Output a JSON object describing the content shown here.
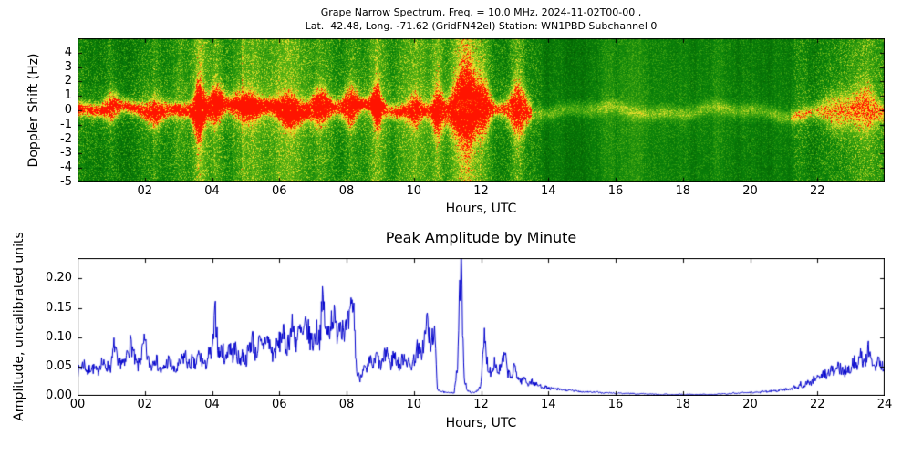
{
  "chart_data": [
    {
      "type": "heatmap",
      "title_line1": "Grape Narrow Spectrum, Freq. = 10.0 MHz, 2024-11-02T00-00 ,",
      "title_line2": "Lat.  42.48, Long. -71.62 (GridFN42el) Station: WN1PBD Subchannel 0",
      "xlabel": "Hours, UTC",
      "ylabel": "Doppler Shift (Hz)",
      "xlim": [
        0,
        24
      ],
      "ylim": [
        -5,
        5
      ],
      "xticks": [
        "02",
        "04",
        "06",
        "08",
        "10",
        "12",
        "14",
        "16",
        "18",
        "20",
        "22"
      ],
      "xtick_values": [
        2,
        4,
        6,
        8,
        10,
        12,
        14,
        16,
        18,
        20,
        22
      ],
      "yticks": [
        "4",
        "3",
        "2",
        "1",
        "0",
        "-1",
        "-2",
        "-3",
        "-4",
        "-5"
      ],
      "ytick_values": [
        4,
        3,
        2,
        1,
        0,
        -1,
        -2,
        -3,
        -4,
        -5
      ],
      "seed": 42,
      "speckle": 0.22,
      "speckle_quiet": 0.13,
      "quiet_range": [
        13.8,
        21.3
      ],
      "colormap_stops": [
        [
          0.0,
          [
            0,
            80,
            0
          ]
        ],
        [
          0.3,
          [
            10,
            130,
            10
          ]
        ],
        [
          0.55,
          [
            90,
            180,
            20
          ]
        ],
        [
          0.75,
          [
            210,
            220,
            40
          ]
        ],
        [
          0.88,
          [
            255,
            230,
            50
          ]
        ],
        [
          0.95,
          [
            255,
            150,
            10
          ]
        ],
        [
          1.0,
          [
            255,
            20,
            0
          ]
        ]
      ],
      "band_segments": [
        {
          "from": 0.0,
          "to": 9.0,
          "amp": 0.92,
          "red": 0.55
        },
        {
          "from": 9.0,
          "to": 10.6,
          "amp": 0.75,
          "red": 0.2
        },
        {
          "from": 10.6,
          "to": 13.5,
          "amp": 0.8,
          "red": 0.3
        },
        {
          "from": 13.5,
          "to": 21.2,
          "amp": 0.32,
          "red": 0.0
        },
        {
          "from": 21.2,
          "to": 24.0,
          "amp": 0.55,
          "red": 0.15
        }
      ],
      "events": [
        {
          "t": 1.0,
          "w": 0.15,
          "s": 0.16
        },
        {
          "t": 2.3,
          "w": 0.2,
          "s": 0.14
        },
        {
          "t": 3.6,
          "w": 0.12,
          "s": 0.45
        },
        {
          "t": 4.1,
          "w": 0.15,
          "s": 0.24
        },
        {
          "t": 5.0,
          "w": 0.3,
          "s": 0.16
        },
        {
          "t": 6.3,
          "w": 0.25,
          "s": 0.2
        },
        {
          "t": 7.2,
          "w": 0.2,
          "s": 0.24
        },
        {
          "t": 8.1,
          "w": 0.15,
          "s": 0.28
        },
        {
          "t": 8.9,
          "w": 0.1,
          "s": 0.34
        },
        {
          "t": 10.0,
          "w": 0.15,
          "s": 0.18
        },
        {
          "t": 10.7,
          "w": 0.12,
          "s": 0.34
        },
        {
          "t": 11.55,
          "w": 0.3,
          "s": 0.75
        },
        {
          "t": 12.1,
          "w": 0.12,
          "s": 0.28
        },
        {
          "t": 13.1,
          "w": 0.2,
          "s": 0.42
        },
        {
          "t": 22.6,
          "w": 0.3,
          "s": 0.26
        },
        {
          "t": 23.4,
          "w": 0.25,
          "s": 0.34
        }
      ]
    },
    {
      "type": "line",
      "title": "Peak Amplitude by Minute",
      "xlabel": "Hours, UTC",
      "ylabel": "Amplitude, uncalibrated units",
      "xlim": [
        0,
        24
      ],
      "ylim": [
        0,
        0.235
      ],
      "xticks": [
        "00",
        "02",
        "04",
        "06",
        "08",
        "10",
        "12",
        "14",
        "16",
        "18",
        "20",
        "22",
        "24"
      ],
      "xtick_values": [
        0,
        2,
        4,
        6,
        8,
        10,
        12,
        14,
        16,
        18,
        20,
        22,
        24
      ],
      "yticks": [
        "0.00",
        "0.05",
        "0.10",
        "0.15",
        "0.20"
      ],
      "ytick_values": [
        0,
        0.05,
        0.1,
        0.15,
        0.2
      ],
      "line_color": "#0000cc",
      "x_step_hours": 0.1,
      "render_noise": 0.45,
      "values": [
        0.04,
        0.05,
        0.055,
        0.04,
        0.05,
        0.045,
        0.04,
        0.06,
        0.05,
        0.05,
        0.05,
        0.09,
        0.05,
        0.06,
        0.05,
        0.08,
        0.09,
        0.06,
        0.05,
        0.07,
        0.09,
        0.06,
        0.05,
        0.07,
        0.05,
        0.04,
        0.05,
        0.06,
        0.05,
        0.04,
        0.05,
        0.06,
        0.07,
        0.05,
        0.06,
        0.05,
        0.07,
        0.06,
        0.05,
        0.07,
        0.07,
        0.14,
        0.07,
        0.08,
        0.06,
        0.09,
        0.07,
        0.08,
        0.06,
        0.07,
        0.06,
        0.08,
        0.1,
        0.07,
        0.09,
        0.08,
        0.1,
        0.09,
        0.07,
        0.08,
        0.09,
        0.11,
        0.08,
        0.1,
        0.12,
        0.09,
        0.11,
        0.1,
        0.12,
        0.1,
        0.09,
        0.11,
        0.1,
        0.165,
        0.1,
        0.12,
        0.14,
        0.11,
        0.13,
        0.12,
        0.11,
        0.13,
        0.16,
        0.04,
        0.03,
        0.05,
        0.04,
        0.06,
        0.05,
        0.07,
        0.05,
        0.06,
        0.08,
        0.05,
        0.07,
        0.06,
        0.05,
        0.07,
        0.06,
        0.05,
        0.06,
        0.08,
        0.07,
        0.09,
        0.13,
        0.08,
        0.12,
        0.012,
        0.008,
        0.006,
        0.005,
        0.006,
        0.005,
        0.05,
        0.235,
        0.03,
        0.008,
        0.006,
        0.005,
        0.01,
        0.02,
        0.1,
        0.05,
        0.04,
        0.06,
        0.04,
        0.05,
        0.07,
        0.04,
        0.03,
        0.05,
        0.03,
        0.025,
        0.03,
        0.02,
        0.025,
        0.02,
        0.018,
        0.016,
        0.015,
        0.013,
        0.012,
        0.012,
        0.011,
        0.01,
        0.01,
        0.009,
        0.009,
        0.008,
        0.008,
        0.007,
        0.007,
        0.007,
        0.006,
        0.006,
        0.006,
        0.005,
        0.005,
        0.005,
        0.005,
        0.004,
        0.005,
        0.004,
        0.004,
        0.004,
        0.004,
        0.003,
        0.003,
        0.004,
        0.003,
        0.003,
        0.003,
        0.003,
        0.002,
        0.002,
        0.003,
        0.002,
        0.002,
        0.002,
        0.003,
        0.002,
        0.002,
        0.003,
        0.002,
        0.002,
        0.002,
        0.003,
        0.002,
        0.003,
        0.002,
        0.003,
        0.003,
        0.004,
        0.003,
        0.004,
        0.005,
        0.004,
        0.005,
        0.006,
        0.005,
        0.006,
        0.005,
        0.007,
        0.006,
        0.008,
        0.007,
        0.008,
        0.009,
        0.008,
        0.01,
        0.01,
        0.012,
        0.01,
        0.015,
        0.012,
        0.02,
        0.015,
        0.025,
        0.02,
        0.03,
        0.035,
        0.03,
        0.04,
        0.035,
        0.045,
        0.04,
        0.05,
        0.045,
        0.04,
        0.05,
        0.045,
        0.06,
        0.05,
        0.07,
        0.055,
        0.08,
        0.06,
        0.05,
        0.065,
        0.05,
        0.05
      ]
    }
  ]
}
